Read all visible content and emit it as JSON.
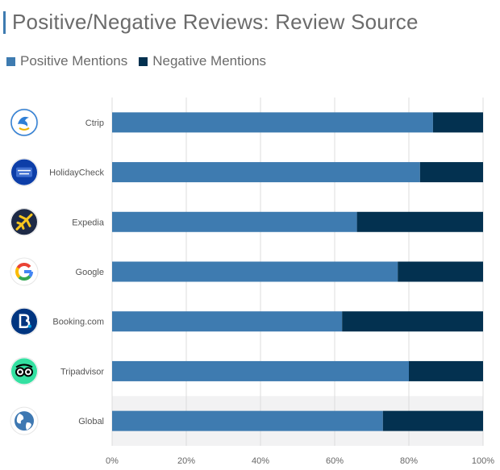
{
  "title": "Positive/Negative Reviews: Review Source",
  "colors": {
    "positive": "#3e7bb0",
    "negative": "#033150",
    "highlight_row": "#f2f2f3",
    "grid": "#dcdcdc"
  },
  "legend": [
    {
      "label": "Positive Mentions",
      "color": "#3e7bb0"
    },
    {
      "label": "Negative Mentions",
      "color": "#033150"
    }
  ],
  "chart_data": {
    "type": "bar",
    "orientation": "horizontal",
    "stacked": true,
    "percent": true,
    "categories": [
      "Ctrip",
      "HolidayCheck",
      "Expedia",
      "Google",
      "Booking.com",
      "Tripadvisor",
      "Global"
    ],
    "category_icons": [
      "ctrip-logo-icon",
      "holidaycheck-logo-icon",
      "expedia-logo-icon",
      "google-logo-icon",
      "booking-logo-icon",
      "tripadvisor-logo-icon",
      "globe-icon"
    ],
    "series": [
      {
        "name": "Positive Mentions",
        "values": [
          86.5,
          83,
          66,
          77,
          62,
          80,
          73
        ]
      },
      {
        "name": "Negative Mentions",
        "values": [
          13.5,
          17,
          34,
          23,
          38,
          20,
          27
        ]
      }
    ],
    "xlim": [
      0,
      100
    ],
    "xticks": [
      "0%",
      "20%",
      "40%",
      "60%",
      "80%",
      "100%"
    ],
    "grid": true,
    "highlighted_category": "Global"
  }
}
